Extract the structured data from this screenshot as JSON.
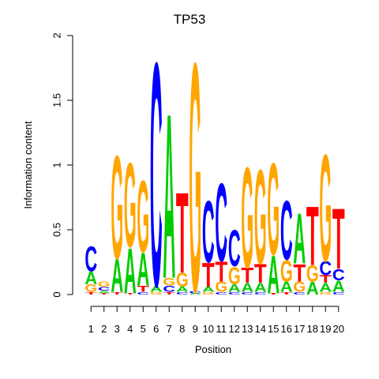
{
  "chart_data": {
    "type": "sequence-logo",
    "title": "TP53",
    "xlabel": "Position",
    "ylabel": "Information content",
    "ylim": [
      0,
      2
    ],
    "yticks": [
      "0",
      "0.5",
      "1",
      "1.5",
      "2"
    ],
    "positions": [
      "1",
      "2",
      "3",
      "4",
      "5",
      "6",
      "7",
      "8",
      "9",
      "10",
      "11",
      "12",
      "13",
      "14",
      "15",
      "16",
      "17",
      "18",
      "19",
      "20"
    ],
    "colors": {
      "A": "#00cc00",
      "C": "#0000ff",
      "G": "#ffa500",
      "T": "#ff0000"
    },
    "stacks": [
      [
        [
          "T",
          0.02
        ],
        [
          "G",
          0.06
        ],
        [
          "A",
          0.1
        ],
        [
          "C",
          0.2
        ]
      ],
      [
        [
          "T",
          0.01
        ],
        [
          "A",
          0.02
        ],
        [
          "C",
          0.03
        ],
        [
          "G",
          0.04
        ]
      ],
      [
        [
          "T",
          0.02
        ],
        [
          "A",
          0.26
        ],
        [
          "G",
          0.82
        ]
      ],
      [
        [
          "T",
          0.01
        ],
        [
          "A",
          0.36
        ],
        [
          "G",
          0.67
        ]
      ],
      [
        [
          "C",
          0.02
        ],
        [
          "T",
          0.05
        ],
        [
          "A",
          0.26
        ],
        [
          "G",
          0.57
        ]
      ],
      [
        [
          "G",
          0.02
        ],
        [
          "A",
          0.05
        ],
        [
          "C",
          1.78
        ]
      ],
      [
        [
          "T",
          0.02
        ],
        [
          "C",
          0.05
        ],
        [
          "G",
          0.06
        ],
        [
          "A",
          1.31
        ]
      ],
      [
        [
          "C",
          0.02
        ],
        [
          "A",
          0.04
        ],
        [
          "G",
          0.11
        ],
        [
          "T",
          0.64
        ]
      ],
      [
        [
          "A",
          0.01
        ],
        [
          "C",
          0.02
        ],
        [
          "G",
          1.82
        ]
      ],
      [
        [
          "G",
          0.02
        ],
        [
          "A",
          0.04
        ],
        [
          "T",
          0.19
        ],
        [
          "C",
          0.49
        ]
      ],
      [
        [
          "C",
          0.02
        ],
        [
          "G",
          0.08
        ],
        [
          "T",
          0.16
        ],
        [
          "C",
          0.62
        ]
      ],
      [
        [
          "C",
          0.02
        ],
        [
          "A",
          0.06
        ],
        [
          "G",
          0.14
        ],
        [
          "C",
          0.29
        ]
      ],
      [
        [
          "C",
          0.02
        ],
        [
          "A",
          0.07
        ],
        [
          "T",
          0.12
        ],
        [
          "G",
          0.8
        ]
      ],
      [
        [
          "C",
          0.02
        ],
        [
          "A",
          0.07
        ],
        [
          "T",
          0.15
        ],
        [
          "G",
          0.75
        ]
      ],
      [
        [
          "T",
          0.01
        ],
        [
          "A",
          0.3
        ],
        [
          "G",
          0.73
        ]
      ],
      [
        [
          "T",
          0.02
        ],
        [
          "A",
          0.08
        ],
        [
          "G",
          0.17
        ],
        [
          "C",
          0.47
        ]
      ],
      [
        [
          "C",
          0.02
        ],
        [
          "G",
          0.08
        ],
        [
          "T",
          0.14
        ],
        [
          "A",
          0.4
        ]
      ],
      [
        [
          "A",
          0.1
        ],
        [
          "G",
          0.13
        ],
        [
          "T",
          0.47
        ]
      ],
      [
        [
          "G",
          0.02
        ],
        [
          "A",
          0.07
        ],
        [
          "T",
          0.06
        ],
        [
          "C",
          0.11
        ],
        [
          "G",
          0.85
        ]
      ],
      [
        [
          "C",
          0.02
        ],
        [
          "A",
          0.09
        ],
        [
          "C",
          0.09
        ],
        [
          "T",
          0.48
        ]
      ]
    ]
  }
}
